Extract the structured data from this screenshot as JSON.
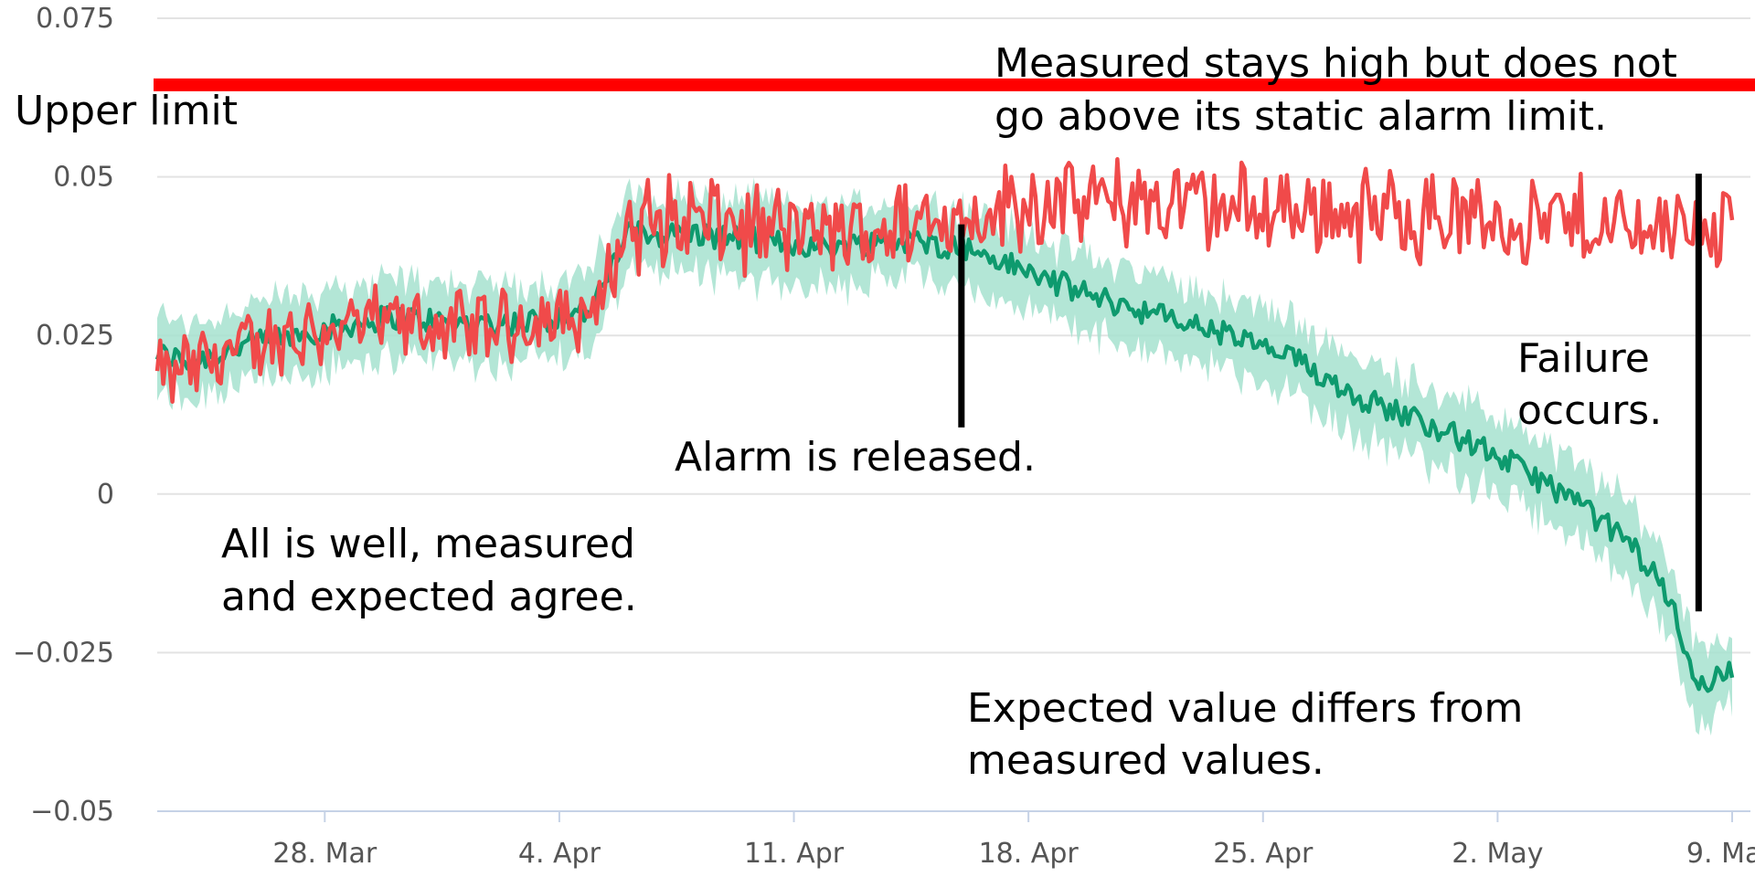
{
  "chart_data": {
    "type": "line",
    "title": "",
    "xlabel": "",
    "ylabel": "",
    "xlim": [
      "2025-03-23",
      "2025-05-09"
    ],
    "ylim": [
      -0.05,
      0.075
    ],
    "y_ticks": [
      "0.075",
      "0.05",
      "0.025",
      "0",
      "−0.025",
      "−0.05"
    ],
    "y_tick_values": [
      0.075,
      0.05,
      0.025,
      0,
      -0.025,
      -0.05
    ],
    "x_ticks": [
      "28. Mar",
      "4. Apr",
      "11. Apr",
      "18. Apr",
      "25. Apr",
      "2. May",
      "9. May"
    ],
    "x_tick_dates": [
      "2025-03-28",
      "2025-04-04",
      "2025-04-11",
      "2025-04-18",
      "2025-04-25",
      "2025-05-02",
      "2025-05-09"
    ],
    "grid": true,
    "upper_limit": {
      "label": "Upper limit",
      "value": 0.0645,
      "color": "#ff0000"
    },
    "series": [
      {
        "role": "measured",
        "color": "#f04a4a",
        "x": [
          "2025-03-23",
          "2025-03-24",
          "2025-03-26",
          "2025-03-28",
          "2025-03-30",
          "2025-04-01",
          "2025-04-03",
          "2025-04-05",
          "2025-04-06",
          "2025-04-08",
          "2025-04-10",
          "2025-04-12",
          "2025-04-14",
          "2025-04-16",
          "2025-04-18",
          "2025-04-20",
          "2025-04-22",
          "2025-04-24",
          "2025-04-26",
          "2025-04-28",
          "2025-04-30",
          "2025-05-02",
          "2025-05-04",
          "2025-05-06",
          "2025-05-08",
          "2025-05-09"
        ],
        "y": [
          0.018,
          0.02,
          0.024,
          0.026,
          0.027,
          0.026,
          0.027,
          0.028,
          0.042,
          0.043,
          0.042,
          0.041,
          0.042,
          0.044,
          0.046,
          0.046,
          0.046,
          0.045,
          0.045,
          0.044,
          0.044,
          0.043,
          0.043,
          0.042,
          0.043,
          0.042
        ]
      },
      {
        "role": "expected",
        "color": "#0e9a6e",
        "band_color": "#a6e2cf",
        "x": [
          "2025-03-23",
          "2025-03-24",
          "2025-03-26",
          "2025-03-28",
          "2025-03-30",
          "2025-04-01",
          "2025-04-03",
          "2025-04-05",
          "2025-04-06",
          "2025-04-08",
          "2025-04-10",
          "2025-04-12",
          "2025-04-14",
          "2025-04-16",
          "2025-04-18",
          "2025-04-20",
          "2025-04-22",
          "2025-04-24",
          "2025-04-26",
          "2025-04-28",
          "2025-04-30",
          "2025-05-02",
          "2025-05-04",
          "2025-05-06",
          "2025-05-07",
          "2025-05-08",
          "2025-05-09"
        ],
        "y": [
          0.022,
          0.021,
          0.024,
          0.026,
          0.028,
          0.027,
          0.027,
          0.029,
          0.041,
          0.041,
          0.04,
          0.039,
          0.04,
          0.039,
          0.035,
          0.031,
          0.028,
          0.025,
          0.021,
          0.015,
          0.011,
          0.006,
          0.0,
          -0.008,
          -0.015,
          -0.03,
          -0.028
        ]
      }
    ],
    "annotations": {
      "upper_limit_label": "Upper limit",
      "measured_stays_line1": "Measured stays high but does not",
      "measured_stays_line2": "go above its static alarm limit.",
      "alarm_released": "Alarm is released.",
      "all_is_well_line1": "All is well, measured",
      "all_is_well_line2": "and expected agree.",
      "failure_line1": "Failure",
      "failure_line2": "occurs.",
      "expected_differs_line1": "Expected value differs from",
      "expected_differs_line2": "measured values."
    },
    "markers": [
      {
        "role": "alarm-released",
        "date": "2025-04-16",
        "y_top": 0.0425,
        "y_bottom": 0.0105
      },
      {
        "role": "failure",
        "date": "2025-05-08",
        "y_top": 0.0505,
        "y_bottom": -0.0185
      }
    ]
  }
}
